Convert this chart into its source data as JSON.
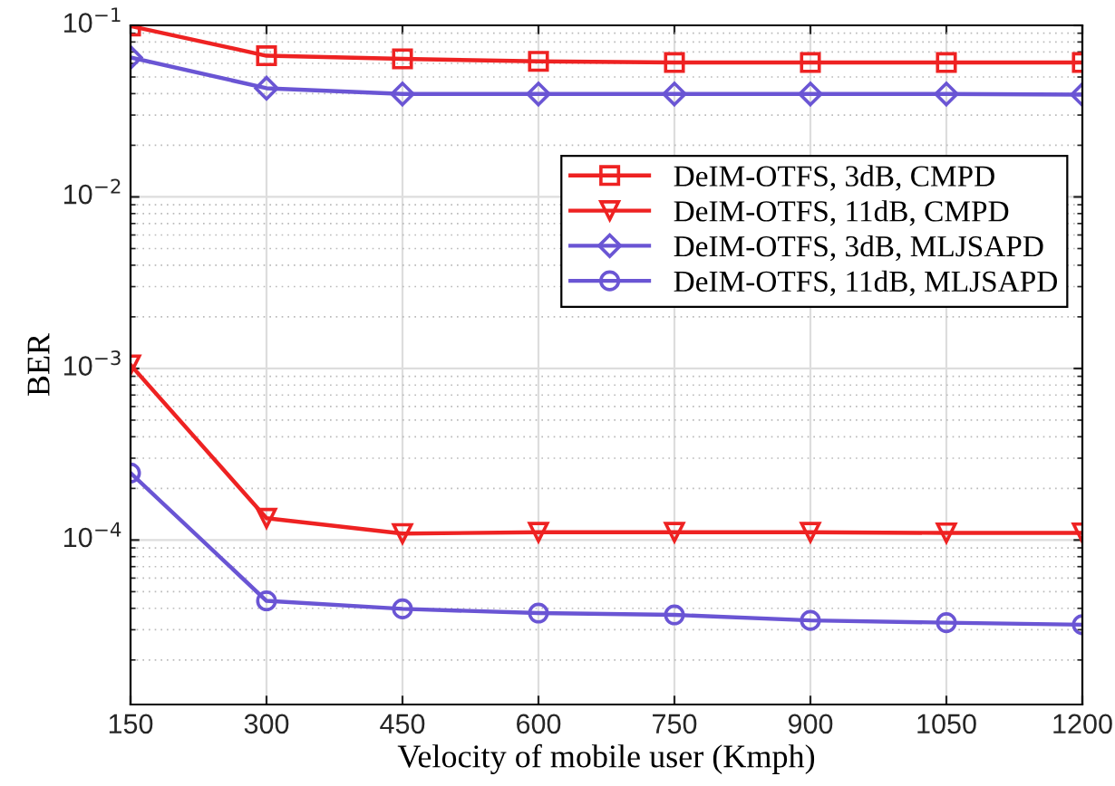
{
  "chart_data": {
    "type": "line",
    "xlabel": "Velocity of mobile user (Kmph)",
    "ylabel": "BER",
    "x": [
      150,
      300,
      450,
      600,
      750,
      900,
      1050,
      1200
    ],
    "series": [
      {
        "name": "DeIM-OTFS, 3dB, CMPD",
        "color": "#ee2222",
        "marker": "square",
        "values": [
          0.099,
          0.0665,
          0.0638,
          0.0617,
          0.0607,
          0.0607,
          0.0607,
          0.0607
        ]
      },
      {
        "name": "DeIM-OTFS, 11dB, CMPD",
        "color": "#ee2222",
        "marker": "triangle",
        "values": [
          0.00105,
          0.000134,
          0.000109,
          0.000111,
          0.000111,
          0.000111,
          0.00011,
          0.00011
        ]
      },
      {
        "name": "DeIM-OTFS, 3dB, MLJSAPD",
        "color": "#6a55d4",
        "marker": "diamond",
        "values": [
          0.065,
          0.043,
          0.0398,
          0.0398,
          0.0398,
          0.0398,
          0.0398,
          0.0395
        ]
      },
      {
        "name": "DeIM-OTFS, 11dB, MLJSAPD",
        "color": "#6a55d4",
        "marker": "circle",
        "values": [
          0.000246,
          4.42e-05,
          3.97e-05,
          3.75e-05,
          3.66e-05,
          3.4e-05,
          3.3e-05,
          3.21e-05
        ]
      }
    ],
    "log": "y",
    "xlim": [
      150,
      1200
    ],
    "ylim": [
      1.1e-05,
      0.1
    ],
    "xticks": [
      150,
      300,
      450,
      600,
      750,
      900,
      1050,
      1200
    ],
    "yticks": [
      {
        "value": 0.0001,
        "label": "10$^{−4}$"
      },
      {
        "value": 0.001,
        "label": "10$^{−3}$"
      },
      {
        "value": 0.01,
        "label": "10$^{−2}$"
      },
      {
        "value": 0.1,
        "label": "10$^{−1}$"
      }
    ],
    "grid": true,
    "legend": "upper right",
    "line_style": "solid"
  }
}
